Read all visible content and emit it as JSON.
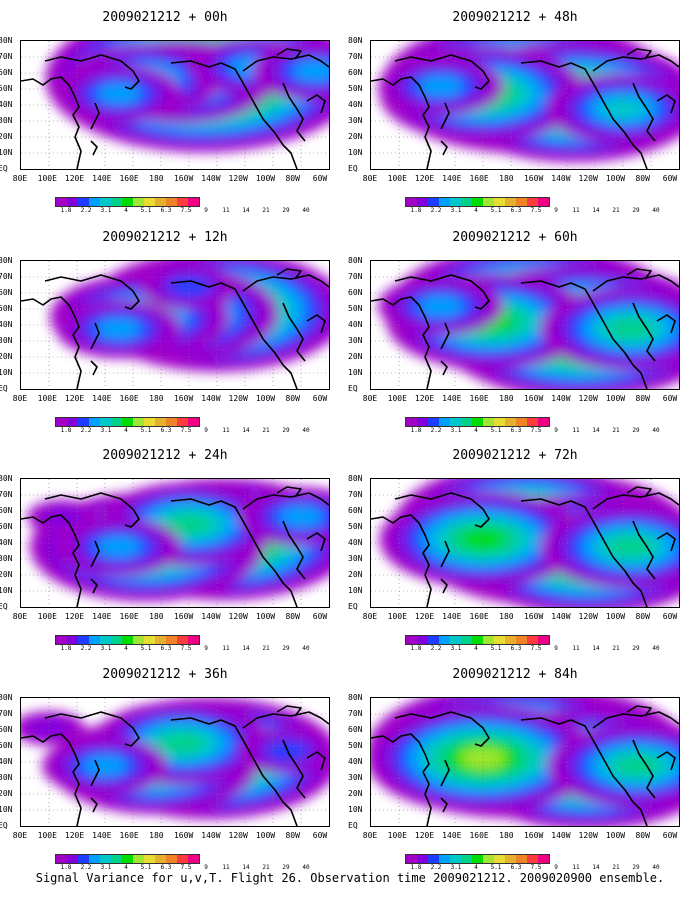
{
  "caption": "Signal Variance for u,v,T. Flight 26. Observation time 2009021212. 2009020900 ensemble.",
  "y_tick_labels": [
    "80N",
    "70N",
    "60N",
    "50N",
    "40N",
    "30N",
    "20N",
    "10N",
    "EQ"
  ],
  "x_tick_labels": [
    "80E",
    "100E",
    "120E",
    "140E",
    "160E",
    "180",
    "160W",
    "140W",
    "120W",
    "100W",
    "80W",
    "60W"
  ],
  "colorbar": {
    "labels": [
      "1.8",
      "2.2",
      "3.1",
      "4",
      "5.1",
      "6.3",
      "7.5",
      "9",
      "11",
      "14",
      "21",
      "29",
      "40"
    ],
    "colors": [
      "#a000c8",
      "#8200dc",
      "#1e3cff",
      "#00a0ff",
      "#00c8c8",
      "#00d28c",
      "#00dc00",
      "#a0e632",
      "#e6dc32",
      "#e6af2d",
      "#f08228",
      "#fa3c3c",
      "#f00082"
    ]
  },
  "chart_data": [
    {
      "type": "heatmap",
      "title": "2009021212 + 00h",
      "lead_hours": 0,
      "xlim": [
        "80E",
        "60W"
      ],
      "ylim": [
        "EQ",
        "80N"
      ],
      "blobs": [
        {
          "lon": 210,
          "lat": 60,
          "level": 10
        },
        {
          "lon": 195,
          "lat": 58,
          "level": 5
        },
        {
          "lon": 170,
          "lat": 60,
          "level": 4
        },
        {
          "lon": 150,
          "lat": 50,
          "level": 3
        },
        {
          "lon": 245,
          "lat": 68,
          "level": 3
        },
        {
          "lon": 290,
          "lat": 65,
          "level": 3
        }
      ]
    },
    {
      "type": "heatmap",
      "title": "2009021212 + 12h",
      "lead_hours": 12,
      "xlim": [
        "80E",
        "60W"
      ],
      "ylim": [
        "EQ",
        "80N"
      ],
      "blobs": [
        {
          "lon": 220,
          "lat": 52,
          "level": 8
        },
        {
          "lon": 190,
          "lat": 50,
          "level": 6
        },
        {
          "lon": 165,
          "lat": 48,
          "level": 5
        },
        {
          "lon": 150,
          "lat": 40,
          "level": 3
        },
        {
          "lon": 200,
          "lat": 68,
          "level": 2
        }
      ]
    },
    {
      "type": "heatmap",
      "title": "2009021212 + 24h",
      "lead_hours": 24,
      "xlim": [
        "80E",
        "60W"
      ],
      "ylim": [
        "EQ",
        "80N"
      ],
      "blobs": [
        {
          "lon": 225,
          "lat": 45,
          "level": 8
        },
        {
          "lon": 170,
          "lat": 40,
          "level": 7
        },
        {
          "lon": 200,
          "lat": 55,
          "level": 5
        },
        {
          "lon": 150,
          "lat": 40,
          "level": 3
        },
        {
          "lon": 280,
          "lat": 60,
          "level": 3
        },
        {
          "lon": 110,
          "lat": 60,
          "level": 1
        }
      ]
    },
    {
      "type": "heatmap",
      "title": "2009021212 + 36h",
      "lead_hours": 36,
      "xlim": [
        "80E",
        "60W"
      ],
      "ylim": [
        "EQ",
        "80N"
      ],
      "blobs": [
        {
          "lon": 215,
          "lat": 45,
          "level": 8
        },
        {
          "lon": 175,
          "lat": 40,
          "level": 6
        },
        {
          "lon": 195,
          "lat": 55,
          "level": 5
        },
        {
          "lon": 140,
          "lat": 40,
          "level": 3
        },
        {
          "lon": 270,
          "lat": 50,
          "level": 2
        },
        {
          "lon": 100,
          "lat": 65,
          "level": 1
        }
      ]
    },
    {
      "type": "heatmap",
      "title": "2009021212 + 48h",
      "lead_hours": 48,
      "xlim": [
        "80E",
        "60W"
      ],
      "ylim": [
        "EQ",
        "80N"
      ],
      "blobs": [
        {
          "lon": 190,
          "lat": 55,
          "level": 9
        },
        {
          "lon": 225,
          "lat": 45,
          "level": 8
        },
        {
          "lon": 160,
          "lat": 50,
          "level": 6
        },
        {
          "lon": 260,
          "lat": 40,
          "level": 4
        },
        {
          "lon": 130,
          "lat": 55,
          "level": 3
        }
      ]
    },
    {
      "type": "heatmap",
      "title": "2009021212 + 60h",
      "lead_hours": 60,
      "xlim": [
        "80E",
        "60W"
      ],
      "ylim": [
        "EQ",
        "80N"
      ],
      "blobs": [
        {
          "lon": 195,
          "lat": 52,
          "level": 9
        },
        {
          "lon": 230,
          "lat": 38,
          "level": 9
        },
        {
          "lon": 165,
          "lat": 45,
          "level": 6
        },
        {
          "lon": 265,
          "lat": 40,
          "level": 5
        },
        {
          "lon": 130,
          "lat": 55,
          "level": 3
        }
      ]
    },
    {
      "type": "heatmap",
      "title": "2009021212 + 72h",
      "lead_hours": 72,
      "xlim": [
        "80E",
        "60W"
      ],
      "ylim": [
        "EQ",
        "80N"
      ],
      "blobs": [
        {
          "lon": 210,
          "lat": 45,
          "level": 9
        },
        {
          "lon": 190,
          "lat": 55,
          "level": 8
        },
        {
          "lon": 235,
          "lat": 35,
          "level": 8
        },
        {
          "lon": 160,
          "lat": 45,
          "level": 6
        },
        {
          "lon": 265,
          "lat": 40,
          "level": 5
        }
      ]
    },
    {
      "type": "heatmap",
      "title": "2009021212 + 84h",
      "lead_hours": 84,
      "xlim": [
        "80E",
        "60W"
      ],
      "ylim": [
        "EQ",
        "80N"
      ],
      "blobs": [
        {
          "lon": 205,
          "lat": 48,
          "level": 9
        },
        {
          "lon": 180,
          "lat": 50,
          "level": 9
        },
        {
          "lon": 235,
          "lat": 38,
          "level": 8
        },
        {
          "lon": 160,
          "lat": 45,
          "level": 7
        },
        {
          "lon": 270,
          "lat": 40,
          "level": 5
        }
      ]
    }
  ]
}
